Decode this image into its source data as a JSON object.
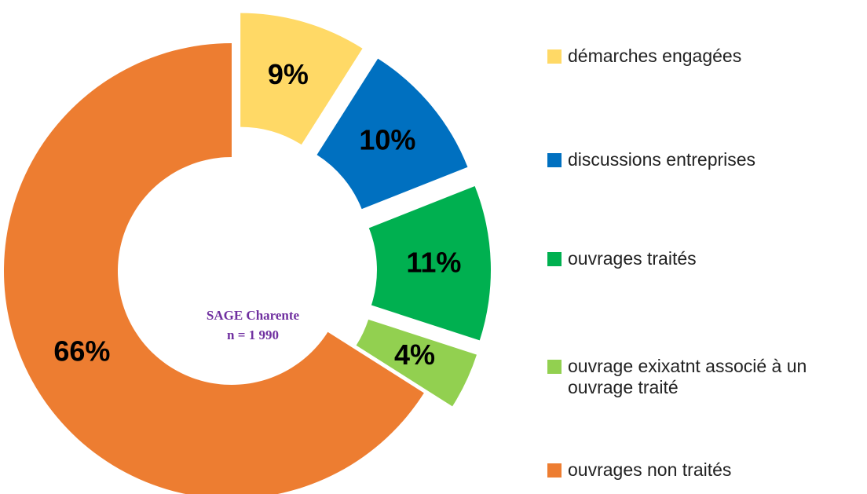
{
  "chart_data": {
    "type": "pie",
    "categories": [
      "démarches engagées",
      "discussions entreprises",
      "ouvrages traités",
      "ouvrage exixatnt associé à un ouvrage traité",
      "ouvrages non traités"
    ],
    "values": [
      9,
      10,
      11,
      4,
      66
    ],
    "value_labels": [
      "9%",
      "10%",
      "11%",
      "4%",
      "66%"
    ],
    "colors": [
      "#FFD966",
      "#0070C0",
      "#00B050",
      "#92D050",
      "#ED7D31"
    ],
    "donut": true,
    "center_text": [
      "SAGE Charente",
      "n = 1 990"
    ],
    "legend": "right"
  }
}
